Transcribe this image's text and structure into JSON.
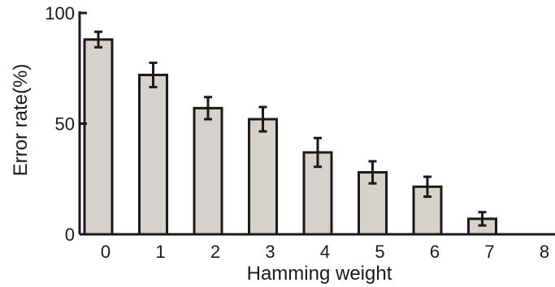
{
  "chart_data": {
    "type": "bar",
    "categories": [
      "0",
      "1",
      "2",
      "3",
      "4",
      "5",
      "6",
      "7",
      "8"
    ],
    "values": [
      88,
      72,
      57,
      52,
      37,
      28,
      21.5,
      7,
      0
    ],
    "errors": [
      3.5,
      5.5,
      5,
      5.5,
      6.5,
      5,
      4.5,
      3,
      0
    ],
    "title": "",
    "xlabel": "Hamming weight",
    "ylabel": "Error rate(%)",
    "ylim": [
      0,
      100
    ],
    "yticks": [
      "0",
      "50",
      "100"
    ],
    "grid": false,
    "colors": {
      "bar_fill": "#d6d2ca",
      "bar_stroke": "#1a1a1a",
      "axis": "#1a1a1a"
    }
  }
}
